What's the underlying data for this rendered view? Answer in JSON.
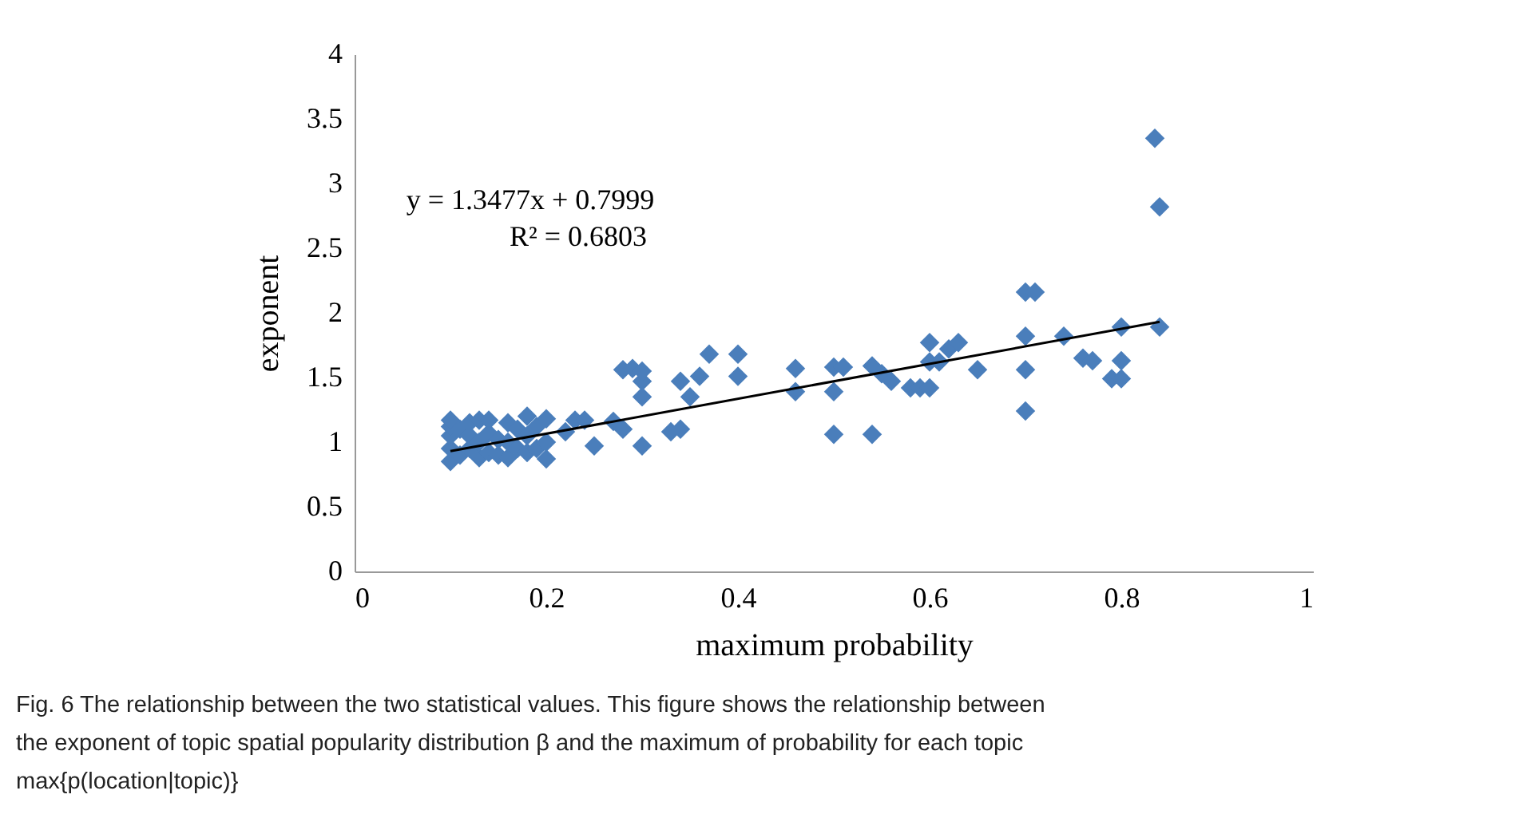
{
  "chart_data": {
    "type": "scatter",
    "xlabel": "maximum probability",
    "ylabel": "exponent",
    "xlim": [
      0,
      1
    ],
    "xticks": [
      0,
      0.2,
      0.4,
      0.6,
      0.8,
      1
    ],
    "ylim": [
      0,
      4
    ],
    "yticks": [
      0,
      0.5,
      1,
      1.5,
      2,
      2.5,
      3,
      3.5,
      4
    ],
    "grid": false,
    "marker": "diamond",
    "series": [
      {
        "color": "#4a7ebb",
        "type": "scatter",
        "x": [
          0.1,
          0.1,
          0.1,
          0.1,
          0.1,
          0.11,
          0.11,
          0.12,
          0.12,
          0.12,
          0.13,
          0.13,
          0.13,
          0.14,
          0.14,
          0.14,
          0.15,
          0.15,
          0.16,
          0.16,
          0.16,
          0.17,
          0.17,
          0.18,
          0.18,
          0.18,
          0.19,
          0.19,
          0.2,
          0.2,
          0.2,
          0.22,
          0.23,
          0.24,
          0.25,
          0.27,
          0.28,
          0.28,
          0.29,
          0.3,
          0.3,
          0.3,
          0.3,
          0.33,
          0.34,
          0.34,
          0.35,
          0.36,
          0.37,
          0.4,
          0.4,
          0.46,
          0.46,
          0.5,
          0.5,
          0.5,
          0.51,
          0.54,
          0.54,
          0.55,
          0.56,
          0.58,
          0.59,
          0.6,
          0.6,
          0.6,
          0.61,
          0.62,
          0.63,
          0.65,
          0.7,
          0.7,
          0.7,
          0.7,
          0.71,
          0.74,
          0.76,
          0.77,
          0.79,
          0.8,
          0.8,
          0.8,
          0.835,
          0.84,
          0.84
        ],
        "values": [
          0.85,
          0.95,
          1.05,
          1.12,
          1.17,
          0.9,
          1.1,
          0.95,
          1.05,
          1.15,
          0.88,
          1.0,
          1.17,
          0.92,
          1.07,
          1.17,
          0.9,
          1.02,
          0.88,
          1.0,
          1.15,
          0.95,
          1.1,
          0.92,
          1.05,
          1.2,
          0.95,
          1.12,
          0.87,
          1.0,
          1.18,
          1.08,
          1.17,
          1.17,
          0.97,
          1.16,
          1.1,
          1.56,
          1.57,
          0.97,
          1.35,
          1.47,
          1.55,
          1.08,
          1.1,
          1.47,
          1.35,
          1.51,
          1.68,
          1.51,
          1.68,
          1.39,
          1.57,
          1.06,
          1.39,
          1.58,
          1.58,
          1.06,
          1.59,
          1.53,
          1.47,
          1.42,
          1.42,
          1.42,
          1.62,
          1.77,
          1.62,
          1.72,
          1.77,
          1.56,
          1.24,
          1.56,
          1.82,
          2.16,
          2.16,
          1.82,
          1.65,
          1.63,
          1.49,
          1.49,
          1.63,
          1.89,
          3.35,
          2.82,
          1.89
        ]
      },
      {
        "color": "#000000",
        "type": "line",
        "marker": "none",
        "x": [
          0.1,
          0.84
        ],
        "values": [
          0.93,
          1.93
        ]
      }
    ],
    "annotations": [
      "y = 1.3477x + 0.7999",
      "R² = 0.6803",
      "Fig. 6  The relationship between the two statistical values. This figure shows the relationship between the exponent of topic spatial popularity distribution β and the maximum of probability for each topic max{p(location|topic)}"
    ]
  }
}
